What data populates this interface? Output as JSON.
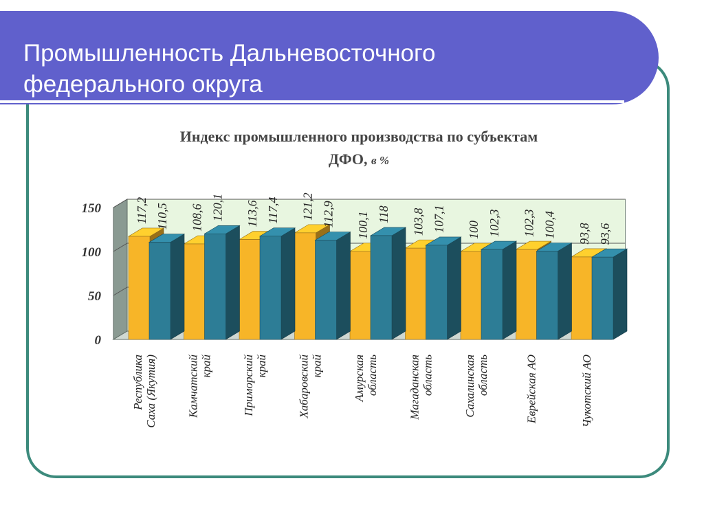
{
  "slide": {
    "title_line1": "Промышленность Дальневосточного",
    "title_line2": "федерального округа"
  },
  "colors": {
    "title_band": "#6060cc",
    "frame": "#3c8a7c",
    "series1": "#f7b528",
    "series2": "#2d7d96",
    "plot_back": "#e8f6e0",
    "wall_left": "#8a9a92"
  },
  "chart_data": {
    "type": "bar",
    "title_main": "Индекс промышленного производства по субъектам",
    "title_abbr": "ДФО,",
    "title_unit": "в %",
    "categories": [
      [
        "Республика",
        "Саха (Якутия)"
      ],
      [
        "Камчатский",
        "край"
      ],
      [
        "Приморский",
        "край"
      ],
      [
        "Хабаровский",
        "край"
      ],
      [
        "Амурская",
        "область"
      ],
      [
        "Магаданская",
        "область"
      ],
      [
        "Сахалинская",
        "область"
      ],
      [
        "Еврейская АО"
      ],
      [
        "Чукотский АО"
      ]
    ],
    "series": [
      {
        "name": "series-1",
        "values": [
          117.2,
          108.6,
          113.6,
          121.2,
          100.1,
          103.8,
          100,
          102.3,
          93.8
        ],
        "labels": [
          "117,2",
          "108,6",
          "113,6",
          "121,2",
          "100,1",
          "103,8",
          "100",
          "102,3",
          "93,8"
        ]
      },
      {
        "name": "series-2",
        "values": [
          110.5,
          120.1,
          117.4,
          112.9,
          118,
          107.1,
          102.3,
          100.4,
          93.6
        ],
        "labels": [
          "110,5",
          "120,1",
          "117,4",
          "112,9",
          "118",
          "107,1",
          "102,3",
          "100,4",
          "93,6"
        ]
      }
    ],
    "y_ticks": [
      "0",
      "50",
      "100",
      "150"
    ],
    "ylim": [
      0,
      150
    ],
    "grid": true
  }
}
